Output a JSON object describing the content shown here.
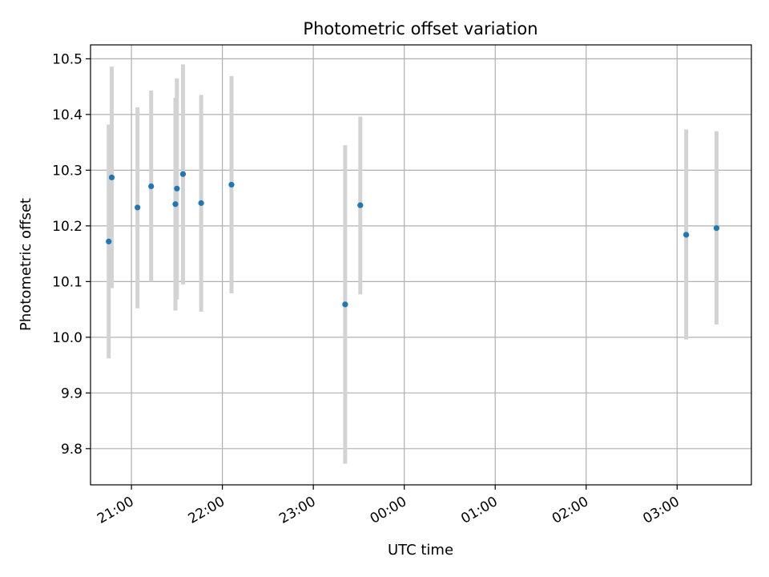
{
  "chart_data": {
    "type": "scatter",
    "title": "Photometric offset variation",
    "xlabel": "UTC time",
    "ylabel": "Photometric offset",
    "x_ticks": [
      "21:00",
      "22:00",
      "23:00",
      "00:00",
      "01:00",
      "02:00",
      "03:00"
    ],
    "y_ticks": [
      "9.8",
      "9.9",
      "10.0",
      "10.1",
      "10.2",
      "10.3",
      "10.4",
      "10.5"
    ],
    "xlim": [
      "20:33",
      "03:49"
    ],
    "ylim": [
      9.735,
      10.525
    ],
    "grid": true,
    "series": [
      {
        "x": [
          "20:45",
          "20:47",
          "21:04",
          "21:13",
          "21:29",
          "21:30",
          "21:34",
          "21:46",
          "22:06",
          "23:21",
          "23:31",
          "03:06",
          "03:26"
        ],
        "y": [
          10.172,
          10.287,
          10.233,
          10.271,
          10.239,
          10.267,
          10.293,
          10.241,
          10.274,
          10.059,
          10.237,
          10.184,
          10.196
        ],
        "error_low": [
          9.962,
          10.088,
          10.052,
          10.1,
          10.048,
          10.068,
          10.095,
          10.046,
          10.079,
          9.773,
          10.077,
          9.996,
          10.023
        ],
        "error_high": [
          10.382,
          10.486,
          10.413,
          10.443,
          10.43,
          10.465,
          10.49,
          10.435,
          10.469,
          10.345,
          10.396,
          10.373,
          10.37
        ],
        "marker_color": "#1f77b4",
        "errorbar_color": "#d3d3d3"
      }
    ]
  }
}
